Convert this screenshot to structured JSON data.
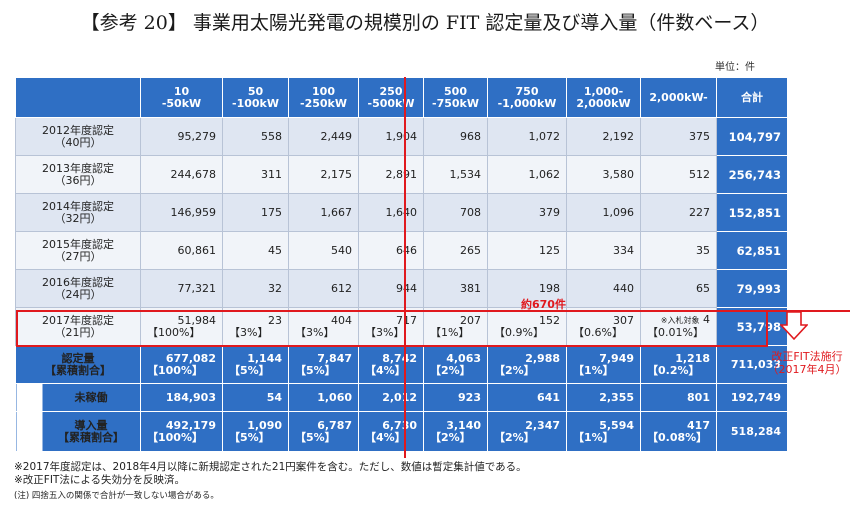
{
  "title": "【参考 20】 事業用太陽光発電の規模別の FIT 認定量及び導入量（件数ベース）",
  "unit": "単位：件",
  "headers": [
    {
      "l1": "10",
      "l2": "-50kW"
    },
    {
      "l1": "50",
      "l2": "-100kW"
    },
    {
      "l1": "100",
      "l2": "-250kW"
    },
    {
      "l1": "250",
      "l2": "-500kW"
    },
    {
      "l1": "500",
      "l2": "-750kW"
    },
    {
      "l1": "750",
      "l2": "-1,000kW"
    },
    {
      "l1": "1,000-",
      "l2": "2,000kW"
    },
    {
      "l1": "2,000kW-",
      "l2": ""
    },
    {
      "l1": "合計",
      "l2": ""
    }
  ],
  "rows": [
    {
      "label1": "2012年度認定",
      "label2": "（40円）",
      "values": [
        "95,279",
        "558",
        "2,449",
        "1,904",
        "968",
        "1,072",
        "2,192",
        "375"
      ],
      "total": "104,797"
    },
    {
      "label1": "2013年度認定",
      "label2": "（36円）",
      "values": [
        "244,678",
        "311",
        "2,175",
        "2,891",
        "1,534",
        "1,062",
        "3,580",
        "512"
      ],
      "total": "256,743"
    },
    {
      "label1": "2014年度認定",
      "label2": "（32円）",
      "values": [
        "146,959",
        "175",
        "1,667",
        "1,640",
        "708",
        "379",
        "1,096",
        "227"
      ],
      "total": "152,851"
    },
    {
      "label1": "2015年度認定",
      "label2": "（27円）",
      "values": [
        "60,861",
        "45",
        "540",
        "646",
        "265",
        "125",
        "334",
        "35"
      ],
      "total": "62,851"
    },
    {
      "label1": "2016年度認定",
      "label2": "（24円）",
      "values": [
        "77,321",
        "32",
        "612",
        "944",
        "381",
        "198",
        "440",
        "65"
      ],
      "total": "79,993"
    }
  ],
  "row2017": {
    "label1": "2017年度認定",
    "label2": "（21円）",
    "values": [
      "51,984",
      "23",
      "404",
      "717",
      "207",
      "152",
      "307",
      "4"
    ],
    "pcts": [
      "【100%】",
      "【3%】",
      "【3%】",
      "【3%】",
      "【1%】",
      "【0.9%】",
      "【0.6%】",
      "【0.01%】"
    ],
    "bid_note": "※入札対象",
    "total": "53,798"
  },
  "cumulative": {
    "label1": "認定量",
    "label2": "【累積割合】",
    "values": [
      "677,082",
      "1,144",
      "7,847",
      "8,742",
      "4,063",
      "2,988",
      "7,949",
      "1,218"
    ],
    "pcts": [
      "【100%】",
      "【5%】",
      "【5%】",
      "【4%】",
      "【2%】",
      "【2%】",
      "【1%】",
      "【0.2%】"
    ],
    "total": "711,033"
  },
  "not_operating": {
    "label": "未稼働",
    "values": [
      "184,903",
      "54",
      "1,060",
      "2,012",
      "923",
      "641",
      "2,355",
      "801"
    ],
    "total": "192,749"
  },
  "introduced": {
    "label1": "導入量",
    "label2": "【累積割合】",
    "values": [
      "492,179",
      "1,090",
      "6,787",
      "6,730",
      "3,140",
      "2,347",
      "5,594",
      "417"
    ],
    "pcts": [
      "【100%】",
      "【5%】",
      "【5%】",
      "【4%】",
      "【2%】",
      "【2%】",
      "【1%】",
      "【0.08%】"
    ],
    "total": "518,284"
  },
  "approx_label": "約670件",
  "annotation": {
    "l1": "改正FIT法施行",
    "l2": "（2017年4月）"
  },
  "notes": [
    "※2017年度認定は、2018年4月以降に新規認定された21円案件を含む。ただし、数値は暫定集計値である。",
    "※改正FIT法による失効分を反映済。",
    "(注) 四捨五入の関係で合計が一致しない場合がある。"
  ],
  "colors": {
    "header_blue": "#2f6fc4",
    "row_light": "#dfe6f2",
    "row_lighter": "#f1f4f9",
    "accent_red": "#e0191e"
  }
}
